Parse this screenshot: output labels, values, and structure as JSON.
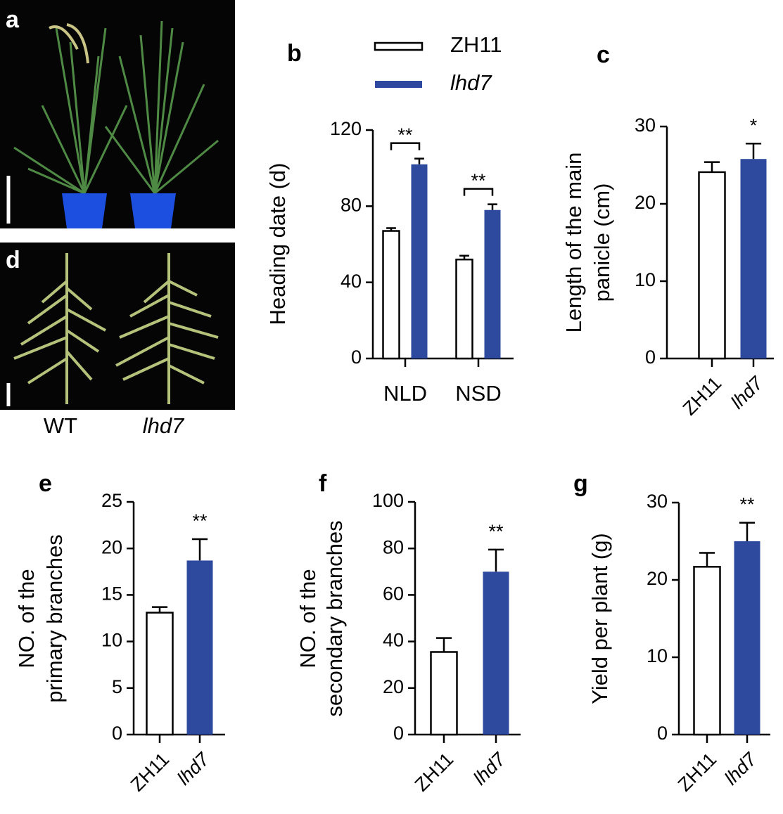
{
  "photos": [
    {
      "label": "a"
    },
    {
      "label": "d",
      "captions": [
        "WT",
        "lhd7"
      ]
    }
  ],
  "chart_data": [
    {
      "type": "grouped-bar",
      "panel": "b",
      "ylabel": [
        "Heading date (d)"
      ],
      "categories": [
        "NLD",
        "NSD"
      ],
      "series": [
        {
          "name": "ZH11",
          "color": "#ffffff",
          "italic": false,
          "values": [
            67,
            52
          ],
          "errors": [
            1.5,
            2
          ]
        },
        {
          "name": "lhd7",
          "color": "#2e4a9e",
          "italic": true,
          "values": [
            102,
            78
          ],
          "errors": [
            3,
            3
          ]
        }
      ],
      "annotations": [
        "**",
        "**"
      ],
      "ylim": [
        0,
        120
      ],
      "yticks": [
        0,
        40,
        80,
        120
      ]
    },
    {
      "type": "bar",
      "panel": "c",
      "ylabel": [
        "Length of the main",
        "panicle (cm)"
      ],
      "categories": [
        "ZH11",
        "lhd7"
      ],
      "category_italic": [
        false,
        true
      ],
      "values": [
        24.1,
        25.8
      ],
      "errors": [
        1.3,
        2
      ],
      "colors": [
        "#ffffff",
        "#2e4a9e"
      ],
      "annotation": "*",
      "ylim": [
        0,
        30
      ],
      "yticks": [
        0,
        10,
        20,
        30
      ]
    },
    {
      "type": "bar",
      "panel": "e",
      "ylabel": [
        "NO. of the",
        "primary branches"
      ],
      "categories": [
        "ZH11",
        "lhd7"
      ],
      "category_italic": [
        false,
        true
      ],
      "values": [
        13.1,
        18.7
      ],
      "errors": [
        0.6,
        2.3
      ],
      "colors": [
        "#ffffff",
        "#2e4a9e"
      ],
      "annotation": "**",
      "ylim": [
        0,
        25
      ],
      "yticks": [
        0,
        5,
        10,
        15,
        20,
        25
      ]
    },
    {
      "type": "bar",
      "panel": "f",
      "ylabel": [
        "NO. of the",
        "secondary branches"
      ],
      "categories": [
        "ZH11",
        "lhd7"
      ],
      "category_italic": [
        false,
        true
      ],
      "values": [
        35.5,
        70
      ],
      "errors": [
        6,
        9.5
      ],
      "colors": [
        "#ffffff",
        "#2e4a9e"
      ],
      "annotation": "**",
      "ylim": [
        0,
        100
      ],
      "yticks": [
        0,
        20,
        40,
        60,
        80,
        100
      ]
    },
    {
      "type": "bar",
      "panel": "g",
      "ylabel": [
        "Yield per plant (g)"
      ],
      "categories": [
        "ZH11",
        "lhd7"
      ],
      "category_italic": [
        false,
        true
      ],
      "values": [
        21.7,
        25
      ],
      "errors": [
        1.8,
        2.4
      ],
      "colors": [
        "#ffffff",
        "#2e4a9e"
      ],
      "annotation": "**",
      "ylim": [
        0,
        30
      ],
      "yticks": [
        0,
        10,
        20,
        30
      ]
    }
  ]
}
